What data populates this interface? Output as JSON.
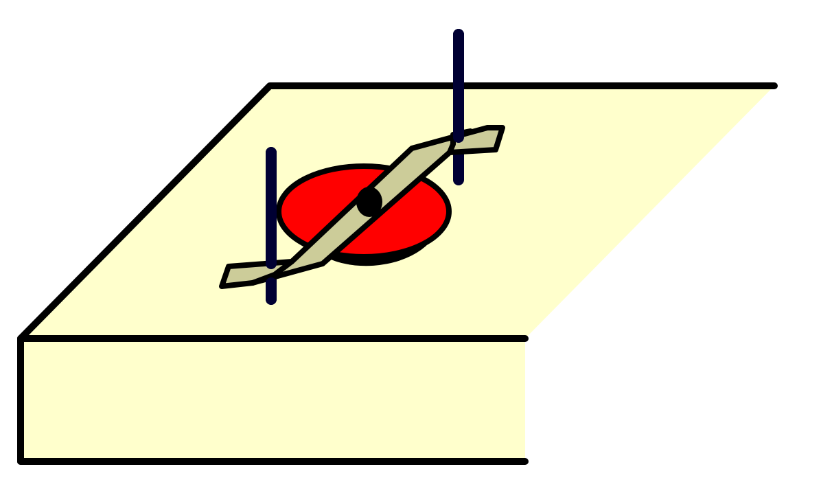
{
  "diagram": {
    "colors": {
      "background": "#ffffff",
      "board_fill": "#ffffcc",
      "outline": "#000000",
      "disk_fill": "#ff0000",
      "arm_fill": "#cccc99",
      "pin_stroke": "#000033",
      "pivot": "#000000"
    },
    "parts": [
      "board",
      "red-disk",
      "rotating-arm",
      "pivot-dot",
      "left-pin",
      "right-pin"
    ]
  }
}
